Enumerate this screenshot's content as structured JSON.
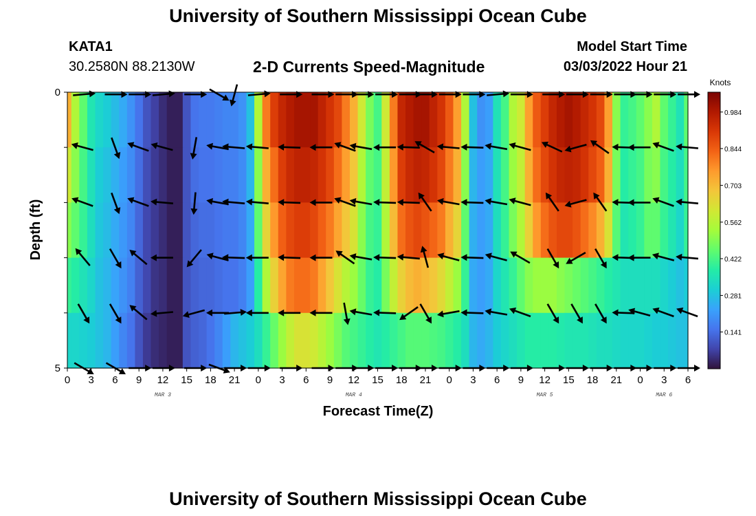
{
  "page": {
    "title": "University of Southern Mississippi Ocean Cube",
    "bottom_title": "University of Southern Mississippi Ocean Cube",
    "station_id": "KATA1",
    "station_coords": "30.2580N  88.2130W",
    "subtitle": "2-D Currents Speed-Magnitude",
    "model_label": "Model Start Time",
    "model_time": "03/03/2022 Hour 21"
  },
  "chart_data": {
    "type": "heatmap",
    "title": "2-D Currents Speed-Magnitude",
    "xlabel": "Forecast Time(Z)",
    "ylabel": "Depth (ft)",
    "x_start_hour": 0,
    "x_end_hour": 78,
    "xtick_labels": [
      "0",
      "3",
      "6",
      "9",
      "12",
      "15",
      "18",
      "21",
      "0",
      "3",
      "6",
      "9",
      "12",
      "15",
      "18",
      "21",
      "0",
      "3",
      "6",
      "9",
      "12",
      "15",
      "18",
      "21",
      "0",
      "3",
      "6"
    ],
    "date_labels": [
      {
        "hour": 12,
        "label": "MAR 3"
      },
      {
        "hour": 36,
        "label": "MAR 4"
      },
      {
        "hour": 60,
        "label": "MAR 5"
      },
      {
        "hour": 75,
        "label": "MAR 6"
      }
    ],
    "ylim": [
      0,
      5
    ],
    "ytick_labels": [
      "0",
      "5"
    ],
    "depth_layers": [
      0,
      1,
      2,
      3,
      4,
      5
    ],
    "colorbar": {
      "label": "Knots",
      "min": 0.0,
      "max": 1.06,
      "ticks": [
        "0.141",
        "0.281",
        "0.422",
        "0.562",
        "0.703",
        "0.844",
        "0.984"
      ],
      "tick_values": [
        0.141,
        0.281,
        0.422,
        0.562,
        0.703,
        0.844,
        0.984
      ]
    },
    "colormap": [
      "#30123b",
      "#4145ab",
      "#4675ed",
      "#39a2fc",
      "#1bcfd4",
      "#24eca6",
      "#61fc6c",
      "#a4fc3b",
      "#d1e834",
      "#f3c63a",
      "#fe9b2d",
      "#f36315",
      "#d93806",
      "#b11901",
      "#7a0402"
    ],
    "speed_hours": [
      0,
      1,
      2,
      3,
      4,
      5,
      6,
      7,
      8,
      9,
      10,
      11,
      12,
      13,
      14,
      15,
      16,
      17,
      18,
      19,
      20,
      21,
      22,
      23,
      24,
      25,
      26,
      27,
      28,
      29,
      30,
      31,
      32,
      33,
      34,
      35,
      36,
      37,
      38,
      39,
      40,
      41,
      42,
      43,
      44,
      45,
      46,
      47,
      48,
      49,
      50,
      51,
      52,
      53,
      54,
      55,
      56,
      57,
      58,
      59,
      60,
      61,
      62,
      63,
      64,
      65,
      66,
      67,
      68,
      69,
      70,
      71,
      72,
      73,
      74,
      75,
      76,
      77,
      78
    ],
    "speed": [
      [
        0.72,
        0.55,
        0.45,
        0.36,
        0.32,
        0.3,
        0.27,
        0.24,
        0.2,
        0.15,
        0.1,
        0.07,
        0.04,
        0.02,
        0.02,
        0.1,
        0.15,
        0.16,
        0.16,
        0.17,
        0.18,
        0.18,
        0.2,
        0.28,
        0.55,
        0.8,
        0.9,
        0.95,
        0.98,
        1.0,
        1.0,
        1.0,
        0.96,
        0.92,
        0.88,
        0.8,
        0.72,
        0.6,
        0.48,
        0.42,
        0.6,
        0.8,
        0.95,
        0.98,
        1.0,
        1.0,
        0.96,
        0.92,
        0.85,
        0.75,
        0.55,
        0.28,
        0.2,
        0.22,
        0.35,
        0.42,
        0.55,
        0.6,
        0.75,
        0.85,
        0.9,
        0.95,
        0.98,
        1.0,
        0.98,
        0.95,
        0.92,
        0.88,
        0.75,
        0.5,
        0.4,
        0.42,
        0.45,
        0.5,
        0.55,
        0.45,
        0.4,
        0.35,
        0.45
      ],
      [
        0.6,
        0.5,
        0.42,
        0.35,
        0.3,
        0.28,
        0.25,
        0.22,
        0.19,
        0.14,
        0.09,
        0.06,
        0.04,
        0.02,
        0.02,
        0.1,
        0.14,
        0.15,
        0.15,
        0.16,
        0.17,
        0.17,
        0.19,
        0.26,
        0.5,
        0.72,
        0.82,
        0.9,
        0.94,
        0.96,
        0.96,
        0.95,
        0.92,
        0.88,
        0.82,
        0.75,
        0.68,
        0.55,
        0.45,
        0.42,
        0.58,
        0.76,
        0.9,
        0.94,
        0.96,
        0.95,
        0.92,
        0.88,
        0.8,
        0.72,
        0.5,
        0.26,
        0.22,
        0.24,
        0.35,
        0.42,
        0.52,
        0.58,
        0.72,
        0.82,
        0.88,
        0.92,
        0.95,
        0.96,
        0.95,
        0.92,
        0.88,
        0.84,
        0.72,
        0.48,
        0.38,
        0.4,
        0.42,
        0.48,
        0.5,
        0.42,
        0.38,
        0.34,
        0.42
      ],
      [
        0.5,
        0.45,
        0.4,
        0.34,
        0.29,
        0.27,
        0.24,
        0.21,
        0.18,
        0.13,
        0.08,
        0.06,
        0.04,
        0.02,
        0.02,
        0.1,
        0.13,
        0.14,
        0.14,
        0.15,
        0.16,
        0.16,
        0.18,
        0.24,
        0.45,
        0.65,
        0.76,
        0.84,
        0.88,
        0.9,
        0.9,
        0.88,
        0.84,
        0.8,
        0.74,
        0.68,
        0.62,
        0.5,
        0.42,
        0.4,
        0.55,
        0.7,
        0.82,
        0.86,
        0.88,
        0.86,
        0.83,
        0.8,
        0.72,
        0.65,
        0.45,
        0.25,
        0.22,
        0.24,
        0.34,
        0.4,
        0.48,
        0.55,
        0.66,
        0.76,
        0.82,
        0.86,
        0.88,
        0.88,
        0.86,
        0.82,
        0.78,
        0.72,
        0.62,
        0.44,
        0.36,
        0.38,
        0.4,
        0.45,
        0.45,
        0.4,
        0.36,
        0.32,
        0.4
      ],
      [
        0.4,
        0.38,
        0.35,
        0.32,
        0.28,
        0.26,
        0.23,
        0.2,
        0.17,
        0.12,
        0.08,
        0.05,
        0.04,
        0.02,
        0.02,
        0.1,
        0.12,
        0.13,
        0.13,
        0.14,
        0.15,
        0.15,
        0.17,
        0.22,
        0.38,
        0.55,
        0.66,
        0.74,
        0.8,
        0.82,
        0.82,
        0.8,
        0.74,
        0.68,
        0.62,
        0.56,
        0.52,
        0.46,
        0.4,
        0.38,
        0.48,
        0.58,
        0.66,
        0.7,
        0.72,
        0.7,
        0.68,
        0.64,
        0.58,
        0.52,
        0.4,
        0.24,
        0.22,
        0.24,
        0.32,
        0.36,
        0.4,
        0.45,
        0.5,
        0.52,
        0.52,
        0.52,
        0.5,
        0.48,
        0.46,
        0.44,
        0.42,
        0.4,
        0.38,
        0.36,
        0.34,
        0.34,
        0.34,
        0.34,
        0.34,
        0.32,
        0.3,
        0.28,
        0.3
      ],
      [
        0.32,
        0.32,
        0.31,
        0.3,
        0.28,
        0.26,
        0.22,
        0.18,
        0.15,
        0.1,
        0.06,
        0.04,
        0.03,
        0.02,
        0.02,
        0.1,
        0.12,
        0.13,
        0.15,
        0.18,
        0.22,
        0.26,
        0.28,
        0.3,
        0.34,
        0.4,
        0.46,
        0.52,
        0.58,
        0.62,
        0.62,
        0.6,
        0.56,
        0.52,
        0.48,
        0.44,
        0.42,
        0.4,
        0.38,
        0.36,
        0.38,
        0.4,
        0.42,
        0.44,
        0.44,
        0.44,
        0.43,
        0.42,
        0.4,
        0.38,
        0.34,
        0.26,
        0.24,
        0.26,
        0.3,
        0.32,
        0.34,
        0.36,
        0.38,
        0.38,
        0.38,
        0.38,
        0.37,
        0.36,
        0.36,
        0.36,
        0.35,
        0.34,
        0.34,
        0.33,
        0.32,
        0.32,
        0.32,
        0.31,
        0.3,
        0.3,
        0.29,
        0.28,
        0.28
      ]
    ],
    "vector_depths": [
      0.04,
      1.0,
      2.0,
      3.0,
      4.0,
      5.0
    ],
    "vector_hours": [
      2,
      6,
      9,
      12,
      16,
      19,
      21,
      24,
      28,
      32,
      35,
      37,
      40,
      43,
      45,
      48,
      51,
      54,
      57,
      61,
      64,
      67,
      70,
      72,
      75,
      78
    ],
    "vector_angles": [
      [
        5,
        0,
        0,
        5,
        0,
        330,
        255,
        5,
        0,
        0,
        0,
        0,
        0,
        0,
        0,
        0,
        0,
        5,
        0,
        0,
        0,
        0,
        0,
        0,
        0,
        0
      ],
      [
        165,
        290,
        160,
        165,
        260,
        170,
        175,
        175,
        178,
        180,
        160,
        170,
        180,
        178,
        150,
        175,
        178,
        170,
        165,
        155,
        195,
        145,
        178,
        180,
        160,
        175
      ],
      [
        160,
        290,
        160,
        175,
        265,
        170,
        175,
        175,
        178,
        180,
        160,
        170,
        178,
        178,
        125,
        170,
        178,
        170,
        165,
        125,
        195,
        125,
        178,
        180,
        160,
        175
      ],
      [
        130,
        300,
        140,
        180,
        230,
        165,
        178,
        180,
        178,
        180,
        145,
        170,
        178,
        175,
        105,
        165,
        178,
        165,
        150,
        300,
        210,
        300,
        178,
        180,
        165,
        175
      ],
      [
        300,
        300,
        140,
        185,
        195,
        180,
        5,
        180,
        180,
        180,
        280,
        170,
        178,
        215,
        300,
        190,
        178,
        170,
        160,
        300,
        300,
        300,
        178,
        165,
        160,
        160
      ],
      [
        330,
        330,
        0,
        0,
        0,
        340,
        0,
        0,
        0,
        0,
        0,
        0,
        0,
        0,
        0,
        0,
        0,
        0,
        0,
        0,
        0,
        0,
        0,
        0,
        0,
        0
      ]
    ]
  }
}
